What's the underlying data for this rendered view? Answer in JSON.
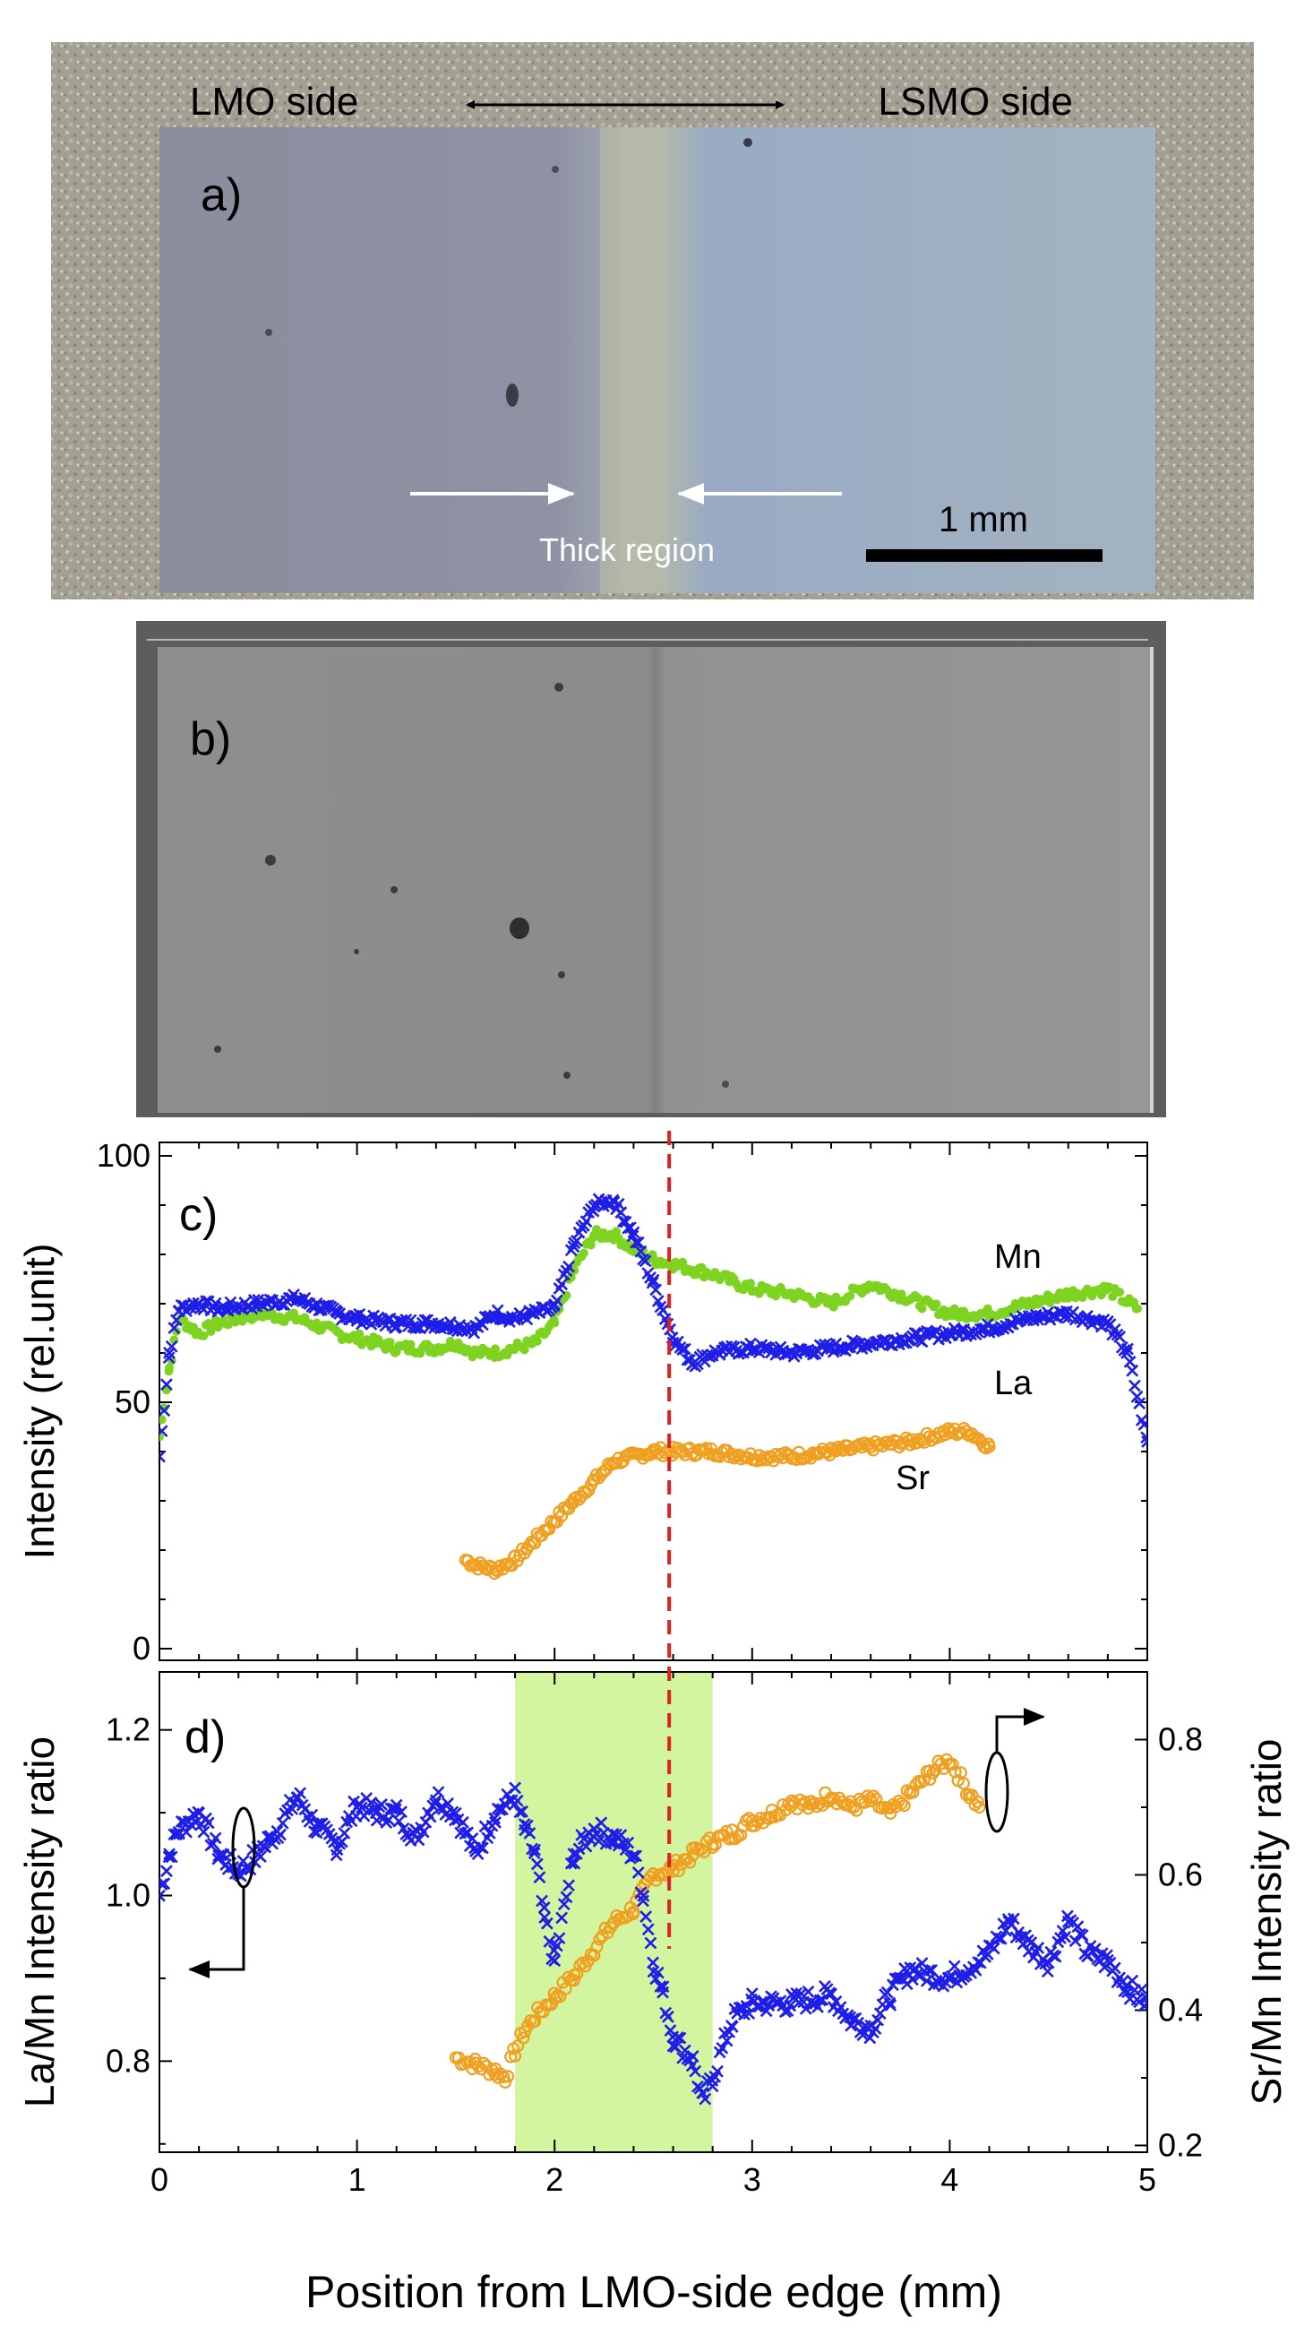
{
  "panel_a": {
    "label": "a)",
    "left_label": "LMO side",
    "right_label": "LSMO side",
    "thick_label": "Thick region",
    "scale_label": "1 mm"
  },
  "panel_b": {
    "label": "b)"
  },
  "colors": {
    "mn": "#7ed321",
    "la": "#1e1ee8",
    "sr": "#f0a020",
    "shade": "#d4f5a0",
    "dashed": "#e02020"
  },
  "chart_data": [
    {
      "type": "line",
      "panel_label": "c)",
      "title": "",
      "xlabel": "",
      "ylabel": "Intensity (rel.unit)",
      "xlim": [
        0,
        5
      ],
      "ylim": [
        0,
        100
      ],
      "xticks": [
        0,
        1,
        2,
        3,
        4,
        5
      ],
      "yticks": [
        0,
        50,
        100
      ],
      "series": [
        {
          "name": "Mn",
          "x": [
            0,
            0.05,
            0.1,
            0.2,
            0.3,
            0.5,
            0.7,
            0.9,
            1.0,
            1.2,
            1.4,
            1.5,
            1.6,
            1.7,
            1.8,
            1.9,
            2.0,
            2.1,
            2.2,
            2.3,
            2.4,
            2.5,
            2.6,
            2.8,
            3.0,
            3.2,
            3.4,
            3.6,
            3.8,
            4.0,
            4.2,
            4.4,
            4.6,
            4.8,
            4.95
          ],
          "values": [
            43,
            57,
            67,
            64,
            66,
            68,
            67,
            64,
            63,
            61,
            61,
            62,
            60,
            60,
            61,
            62,
            66,
            77,
            84,
            84,
            81,
            79,
            78,
            76,
            73,
            72,
            70,
            74,
            71,
            68,
            68,
            70,
            72,
            73,
            69
          ]
        },
        {
          "name": "La",
          "x": [
            0,
            0.05,
            0.1,
            0.2,
            0.3,
            0.5,
            0.7,
            0.9,
            1.0,
            1.2,
            1.4,
            1.6,
            1.7,
            1.8,
            1.9,
            2.0,
            2.1,
            2.2,
            2.3,
            2.4,
            2.5,
            2.6,
            2.7,
            2.8,
            3.0,
            3.2,
            3.4,
            3.6,
            3.8,
            4.0,
            4.2,
            4.4,
            4.6,
            4.8,
            4.9,
            5.0
          ],
          "values": [
            39,
            60,
            69,
            70,
            69,
            70,
            71,
            68,
            67,
            66,
            66,
            65,
            68,
            67,
            68,
            69,
            82,
            90,
            91,
            84,
            74,
            63,
            58,
            60,
            61,
            60,
            61,
            62,
            63,
            64,
            65,
            67,
            68,
            66,
            60,
            42
          ]
        },
        {
          "name": "Sr",
          "x": [
            1.55,
            1.6,
            1.7,
            1.8,
            1.9,
            2.0,
            2.1,
            2.2,
            2.3,
            2.4,
            2.5,
            2.6,
            2.8,
            3.0,
            3.2,
            3.4,
            3.6,
            3.8,
            4.0,
            4.1,
            4.2
          ],
          "values": [
            18,
            17,
            16,
            18,
            22,
            26,
            30,
            34,
            38,
            39,
            40,
            40,
            40,
            39,
            39,
            40,
            41,
            42,
            44,
            44,
            41
          ]
        }
      ],
      "annotations": [
        "Mn",
        "La",
        "Sr"
      ]
    },
    {
      "type": "scatter",
      "panel_label": "d)",
      "xlabel": "Position from LMO-side edge (mm)",
      "ylabel": "La/Mn Intensity ratio",
      "ylabel_right": "Sr/Mn Intensity ratio",
      "xlim": [
        0,
        5
      ],
      "ylim": [
        0.69,
        1.27
      ],
      "ylim_right": [
        0.19,
        0.9
      ],
      "xticks": [
        0,
        1,
        2,
        3,
        4,
        5
      ],
      "yticks": [
        0.8,
        1.0,
        1.2
      ],
      "yticks_right": [
        0.2,
        0.4,
        0.6,
        0.8
      ],
      "shaded_region": [
        1.8,
        2.8
      ],
      "dashed_line_x": 2.58,
      "series": [
        {
          "name": "La/Mn",
          "axis": "left",
          "x": [
            0,
            0.05,
            0.1,
            0.2,
            0.3,
            0.4,
            0.5,
            0.6,
            0.7,
            0.8,
            0.9,
            1.0,
            1.1,
            1.2,
            1.3,
            1.4,
            1.5,
            1.6,
            1.7,
            1.8,
            1.85,
            1.9,
            1.95,
            2.0,
            2.1,
            2.2,
            2.3,
            2.4,
            2.45,
            2.5,
            2.55,
            2.6,
            2.7,
            2.75,
            2.8,
            2.9,
            3.0,
            3.2,
            3.4,
            3.5,
            3.6,
            3.7,
            3.8,
            4.0,
            4.2,
            4.3,
            4.4,
            4.5,
            4.6,
            4.7,
            4.8,
            4.9,
            5.0
          ],
          "values": [
            1.0,
            1.05,
            1.08,
            1.1,
            1.05,
            1.03,
            1.05,
            1.08,
            1.12,
            1.08,
            1.06,
            1.11,
            1.1,
            1.1,
            1.07,
            1.12,
            1.1,
            1.05,
            1.1,
            1.12,
            1.08,
            1.05,
            0.97,
            0.92,
            1.05,
            1.08,
            1.07,
            1.05,
            1.0,
            0.92,
            0.88,
            0.83,
            0.8,
            0.75,
            0.78,
            0.85,
            0.87,
            0.87,
            0.88,
            0.85,
            0.84,
            0.88,
            0.91,
            0.9,
            0.93,
            0.97,
            0.94,
            0.92,
            0.97,
            0.93,
            0.92,
            0.89,
            0.87
          ]
        },
        {
          "name": "Sr/Mn",
          "axis": "right",
          "x": [
            1.5,
            1.6,
            1.7,
            1.75,
            1.8,
            1.85,
            1.9,
            2.0,
            2.1,
            2.2,
            2.3,
            2.4,
            2.5,
            2.6,
            2.7,
            2.8,
            2.9,
            3.0,
            3.1,
            3.2,
            3.3,
            3.4,
            3.5,
            3.6,
            3.7,
            3.8,
            3.9,
            4.0,
            4.1,
            4.15
          ],
          "values": [
            0.33,
            0.32,
            0.31,
            0.3,
            0.34,
            0.37,
            0.39,
            0.42,
            0.45,
            0.49,
            0.53,
            0.55,
            0.6,
            0.61,
            0.63,
            0.65,
            0.66,
            0.68,
            0.69,
            0.71,
            0.7,
            0.72,
            0.7,
            0.71,
            0.69,
            0.72,
            0.75,
            0.77,
            0.72,
            0.7
          ]
        }
      ]
    }
  ]
}
